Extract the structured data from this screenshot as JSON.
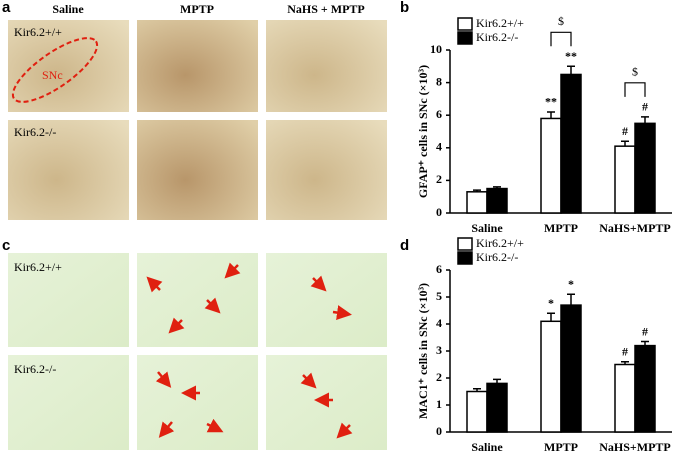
{
  "panel_labels": [
    "a",
    "b",
    "c",
    "d"
  ],
  "micrographs": {
    "columns": [
      "Saline",
      "MPTP",
      "NaHS + MPTP"
    ],
    "rows_a": [
      "Kir6.2+/+",
      "Kir6.2-/-"
    ],
    "region": "SNc",
    "rows_c": [
      "Kir6.2+/+",
      "Kir6.2-/-"
    ]
  },
  "chart_data": [
    {
      "type": "bar",
      "y_label": "GFAP⁺ cells in SNc (×10³)",
      "categories": [
        "Saline",
        "MPTP",
        "NaHS+MPTP"
      ],
      "series": [
        {
          "name": "Kir6.2+/+",
          "color": "#ffffff",
          "values": [
            1.3,
            5.8,
            4.1
          ],
          "errors": [
            0.1,
            0.4,
            0.3
          ],
          "marks": [
            null,
            "**",
            "#"
          ]
        },
        {
          "name": "Kir6.2-/-",
          "color": "#000000",
          "values": [
            1.5,
            8.5,
            5.5
          ],
          "errors": [
            0.1,
            0.5,
            0.4
          ],
          "marks": [
            null,
            "**",
            "#"
          ]
        }
      ],
      "between_series_marks": [
        null,
        "$",
        "$"
      ],
      "ylim": [
        0,
        10
      ],
      "yticks": [
        0,
        2,
        4,
        6,
        8,
        10
      ],
      "legend": "top-left"
    },
    {
      "type": "bar",
      "y_label": "MAC1⁺ cells in SNc (×10³)",
      "categories": [
        "Saline",
        "MPTP",
        "NaHS+MPTP"
      ],
      "series": [
        {
          "name": "Kir6.2+/+",
          "color": "#ffffff",
          "values": [
            1.5,
            4.1,
            2.5
          ],
          "errors": [
            0.1,
            0.3,
            0.1
          ],
          "marks": [
            null,
            "*",
            "#"
          ]
        },
        {
          "name": "Kir6.2-/-",
          "color": "#000000",
          "values": [
            1.8,
            4.7,
            3.2
          ],
          "errors": [
            0.15,
            0.4,
            0.15
          ],
          "marks": [
            null,
            "*",
            "#"
          ]
        }
      ],
      "ylim": [
        0,
        6
      ],
      "yticks": [
        0,
        1,
        2,
        3,
        4,
        5,
        6
      ],
      "legend": "top-left"
    }
  ]
}
